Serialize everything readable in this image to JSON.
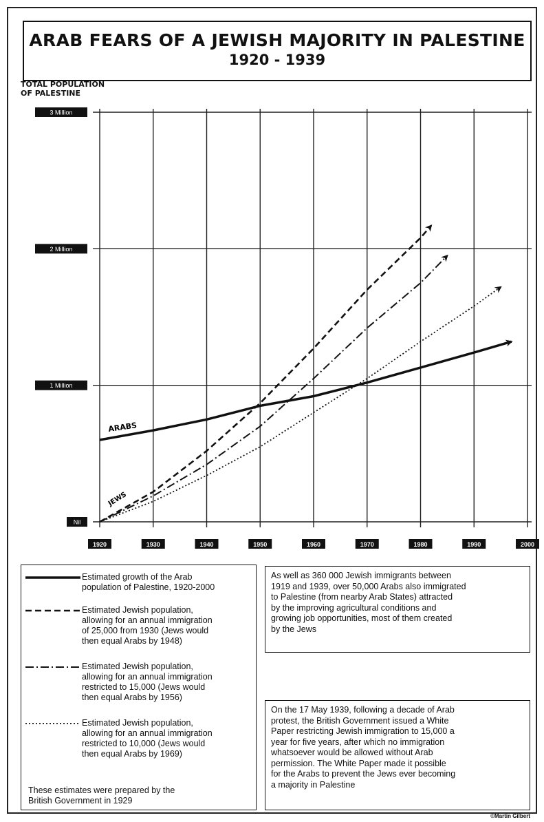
{
  "title": "ARAB FEARS OF A JEWISH MAJORITY IN PALESTINE",
  "subtitle": "1920 - 1939",
  "ylabel": "TOTAL POPULATION\nOF PALESTINE",
  "credit": "©Martin Gilbert",
  "chart_data": {
    "type": "line",
    "title": "ARAB FEARS OF A JEWISH MAJORITY IN PALESTINE",
    "subtitle": "1920 - 1939",
    "xlabel": "",
    "ylabel": "TOTAL POPULATION OF PALESTINE",
    "xlim": [
      1920,
      2000
    ],
    "ylim": [
      0,
      3
    ],
    "x_ticks": [
      1920,
      1930,
      1940,
      1950,
      1960,
      1970,
      1980,
      1990,
      2000
    ],
    "x_tick_labels": [
      "1920",
      "1930",
      "1940",
      "1950",
      "1960",
      "1970",
      "1980",
      "1990",
      "2000"
    ],
    "y_ticks": [
      0,
      1,
      2,
      3
    ],
    "y_tick_labels": [
      "Nil",
      "1 Million",
      "2 Million",
      "3 Million"
    ],
    "grid": true,
    "series": [
      {
        "name": "ARABS",
        "style": "solid",
        "x": [
          1920,
          1930,
          1940,
          1950,
          1960,
          1970,
          1980,
          1990,
          1997
        ],
        "y": [
          0.6,
          0.67,
          0.75,
          0.85,
          0.92,
          1.02,
          1.13,
          1.24,
          1.32
        ]
      },
      {
        "name": "JEWS",
        "style": "dashed",
        "x": [
          1920,
          1930,
          1940,
          1950,
          1960,
          1970,
          1980,
          1982
        ],
        "y": [
          0.0,
          0.22,
          0.52,
          0.87,
          1.27,
          1.7,
          2.08,
          2.17
        ]
      },
      {
        "style": "dashdot",
        "x": [
          1920,
          1930,
          1940,
          1950,
          1960,
          1970,
          1980,
          1985
        ],
        "y": [
          0.0,
          0.19,
          0.42,
          0.7,
          1.05,
          1.42,
          1.75,
          1.95
        ]
      },
      {
        "style": "dotted",
        "x": [
          1920,
          1930,
          1940,
          1950,
          1960,
          1970,
          1980,
          1990,
          1995
        ],
        "y": [
          0.0,
          0.15,
          0.34,
          0.55,
          0.8,
          1.05,
          1.32,
          1.58,
          1.72
        ]
      }
    ],
    "line_labels": [
      "ARABS",
      "JEWS"
    ]
  },
  "legend": {
    "entries": [
      {
        "style": "solid",
        "text": "Estimated growth of the Arab\npopulation of Palestine, 1920-2000"
      },
      {
        "style": "dashed",
        "text": "Estimated Jewish population,\nallowing for an annual immigration\nof 25,000 from 1930 (Jews would\nthen equal Arabs by 1948)"
      },
      {
        "style": "dashdot",
        "text": "Estimated Jewish population,\nallowing for an annual immigration\nrestricted to 15,000  (Jews would\nthen equal Arabs by 1956)"
      },
      {
        "style": "dotted",
        "text": "Estimated Jewish population,\nallowing for an annual immigration\nrestricted to 10,000 (Jews would\nthen equal Arabs by 1969)"
      }
    ],
    "footnote": "These estimates were prepared by the\nBritish Government in 1929"
  },
  "notes": [
    "As well as 360 000 Jewish immigrants between\n1919 and 1939, over 50,000 Arabs also immigrated\nto Palestine (from nearby Arab States) attracted\nby the improving agricultural conditions and\ngrowing job opportunities, most of them created\nby the Jews",
    "On the 17 May 1939,  following a decade of Arab\nprotest, the British Government issued a White\nPaper restricting Jewish immigration to 15,000 a\nyear for five years, after which no immigration\nwhatsoever would be allowed without  Arab\npermission.  The White Paper made it possible\nfor the Arabs to prevent the Jews ever becoming\na majority in Palestine"
  ]
}
